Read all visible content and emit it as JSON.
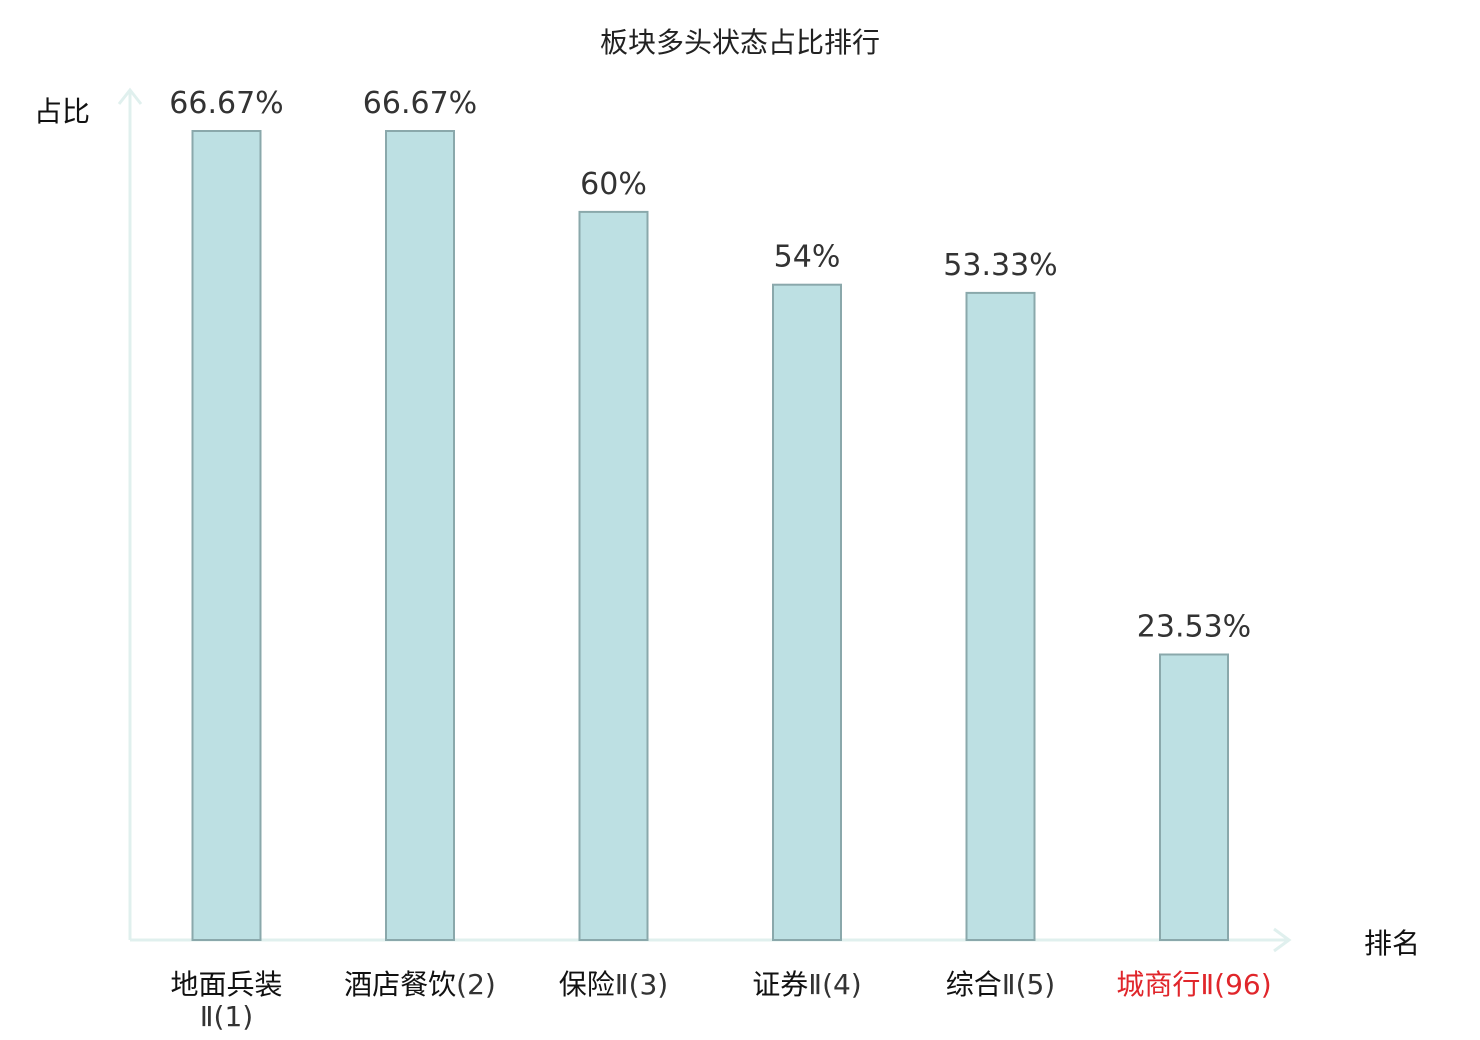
{
  "chart_data": {
    "type": "bar",
    "title": "板块多头状态占比排行",
    "xlabel": "排名",
    "ylabel": "占比",
    "ylim": [
      0,
      70
    ],
    "grid": false,
    "categories": [
      {
        "name": "地面兵装",
        "suffix": "Ⅱ(1)",
        "wrap": true,
        "highlight": false
      },
      {
        "name": "酒店餐饮",
        "suffix": "(2)",
        "wrap": false,
        "highlight": false
      },
      {
        "name": "保险",
        "suffix": "Ⅱ(3)",
        "wrap": false,
        "highlight": false
      },
      {
        "name": "证券",
        "suffix": "Ⅱ(4)",
        "wrap": false,
        "highlight": false
      },
      {
        "name": "综合",
        "suffix": "Ⅱ(5)",
        "wrap": false,
        "highlight": false
      },
      {
        "name": "城商行",
        "suffix": "Ⅱ(96)",
        "wrap": false,
        "highlight": true
      }
    ],
    "values": [
      66.67,
      66.67,
      60,
      54,
      53.33,
      23.53
    ],
    "value_labels": [
      "66.67%",
      "66.67%",
      "60%",
      "54%",
      "53.33%",
      "23.53%"
    ],
    "colors": {
      "bar_fill": "#bde0e3",
      "bar_stroke": "#8aa8ab",
      "axis": "#e0f0ee",
      "highlight": "#e0262b"
    }
  }
}
